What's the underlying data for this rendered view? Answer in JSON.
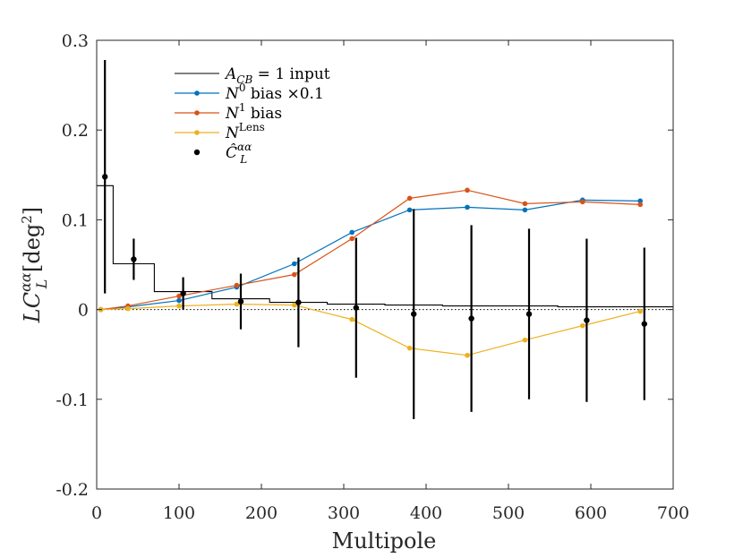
{
  "chart_data": {
    "type": "line",
    "title": "",
    "xlabel": "Multipole",
    "ylabel": "LC_L^{αα} [deg²]",
    "xlim": [
      0,
      700
    ],
    "ylim": [
      -0.2,
      0.3
    ],
    "grid": false,
    "legend_position": "top-left",
    "x_ticks": [
      0,
      100,
      200,
      300,
      400,
      500,
      600,
      700
    ],
    "x_tick_labels": [
      "0",
      "100",
      "200",
      "300",
      "400",
      "500",
      "600",
      "700"
    ],
    "y_ticks": [
      -0.2,
      -0.1,
      0,
      0.1,
      0.2,
      0.3
    ],
    "y_tick_labels": [
      "-0.2",
      "-0.1",
      "0",
      "0.1",
      "0.2",
      "0.3"
    ],
    "colors": {
      "input": "#000000",
      "n0": "#0072bd",
      "n1": "#d95319",
      "nlens": "#edb120",
      "data": "#000000",
      "axis": "#262626"
    },
    "legend": [
      {
        "key": "input",
        "base": "A",
        "sub": "CB",
        "suffix": " = 1 input"
      },
      {
        "key": "n0",
        "base": "N",
        "sup": "0",
        "suffix": " bias ×0.1"
      },
      {
        "key": "n1",
        "base": "N",
        "sup": "1",
        "suffix": " bias"
      },
      {
        "key": "nlens",
        "base": "N",
        "sup": "Lens",
        "suffix": ""
      },
      {
        "key": "data",
        "base": "Ĉ",
        "sup": "αα",
        "sub": "L",
        "suffix": ""
      }
    ],
    "series": [
      {
        "key": "input",
        "name": "A_CB = 1 input",
        "style": "step",
        "edges": [
          0,
          20,
          70,
          140,
          210,
          280,
          350,
          420,
          490,
          560,
          630,
          700
        ],
        "values": [
          0.138,
          0.051,
          0.02,
          0.012,
          0.008,
          0.006,
          0.005,
          0.004,
          0.004,
          0.003,
          0.003
        ]
      },
      {
        "key": "n0",
        "name": "N^0 bias ×0.1",
        "x": [
          5,
          38,
          100,
          170,
          240,
          310,
          380,
          450,
          520,
          590,
          660
        ],
        "values": [
          0.0,
          0.003,
          0.01,
          0.025,
          0.051,
          0.086,
          0.111,
          0.114,
          0.111,
          0.122,
          0.121
        ]
      },
      {
        "key": "n1",
        "name": "N^1 bias",
        "x": [
          5,
          38,
          100,
          170,
          240,
          310,
          380,
          450,
          520,
          590,
          660
        ],
        "values": [
          0.0,
          0.004,
          0.015,
          0.027,
          0.039,
          0.079,
          0.124,
          0.133,
          0.118,
          0.12,
          0.117
        ]
      },
      {
        "key": "nlens",
        "name": "N^Lens",
        "x": [
          5,
          38,
          100,
          170,
          240,
          310,
          380,
          450,
          520,
          590,
          660
        ],
        "values": [
          0.0,
          0.001,
          0.004,
          0.006,
          0.005,
          -0.011,
          -0.043,
          -0.051,
          -0.034,
          -0.018,
          -0.002
        ]
      }
    ],
    "errorbars": {
      "key": "data",
      "name": "Ĉ_L^{αα}",
      "x": [
        10,
        45,
        105,
        175,
        245,
        315,
        385,
        455,
        525,
        595,
        665
      ],
      "values": [
        0.148,
        0.056,
        0.018,
        0.009,
        0.008,
        0.002,
        -0.005,
        -0.01,
        -0.005,
        -0.012,
        -0.016
      ],
      "err": [
        0.13,
        0.023,
        0.018,
        0.031,
        0.05,
        0.078,
        0.117,
        0.104,
        0.095,
        0.091,
        0.085
      ]
    },
    "zero_line": {
      "y": 0,
      "style": "dotted"
    }
  }
}
